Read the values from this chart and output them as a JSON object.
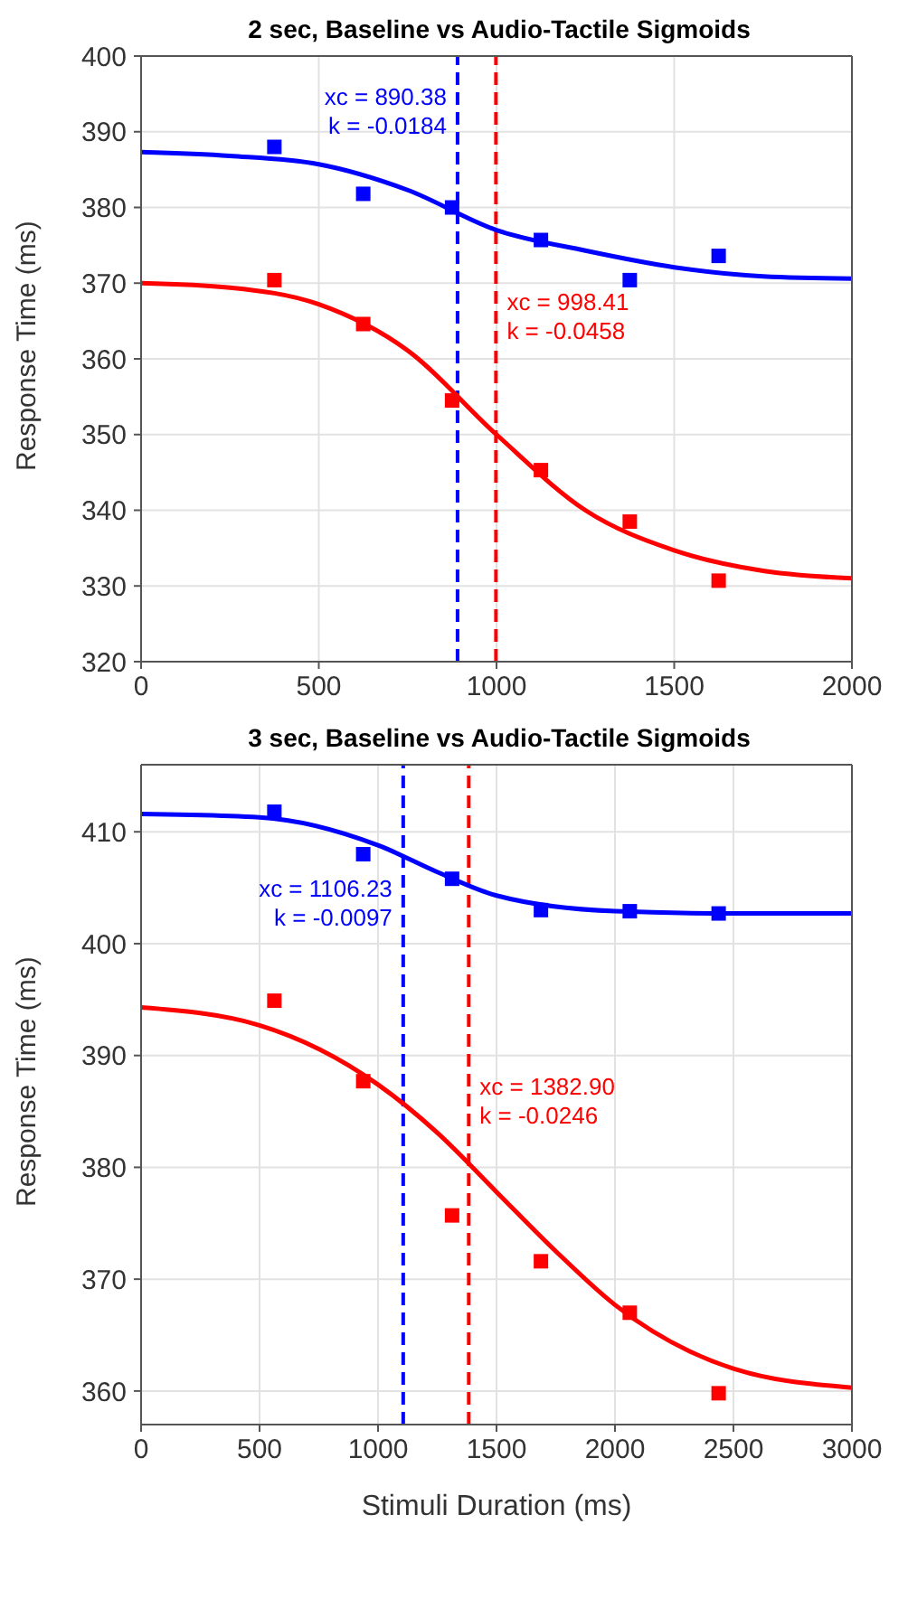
{
  "chart_data": [
    {
      "type": "scatter",
      "title": "2 sec, Baseline vs Audio-Tactile Sigmoids",
      "ylabel": "Response Time (ms)",
      "xlim": [
        0,
        2000
      ],
      "xticks": [
        0,
        500,
        1000,
        1500,
        2000
      ],
      "ylim": [
        320,
        400
      ],
      "yticks": [
        320,
        330,
        340,
        350,
        360,
        370,
        380,
        390,
        400
      ],
      "grid": true,
      "series": [
        {
          "marker": "square",
          "color": "#0000ff",
          "x": [
            375,
            625,
            875,
            1125,
            1375,
            1625
          ],
          "values": [
            388,
            381.8,
            380,
            375.7,
            370.4,
            373.6
          ]
        },
        {
          "marker": "square",
          "color": "#ff0000",
          "x": [
            375,
            625,
            875,
            1125,
            1375,
            1625
          ],
          "values": [
            370.4,
            364.6,
            354.5,
            345.3,
            338.5,
            330.7
          ]
        },
        {
          "type": "line",
          "marker": "none",
          "line_style": "solid",
          "color": "#0000ff",
          "x": [
            0,
            250,
            500,
            750,
            1000,
            1250,
            1500,
            1750,
            2000
          ],
          "values": [
            387.3,
            386.8,
            385.7,
            382.3,
            377,
            374.3,
            372.1,
            370.9,
            370.6
          ]
        },
        {
          "type": "line",
          "marker": "none",
          "line_style": "solid",
          "color": "#ff0000",
          "x": [
            0,
            250,
            500,
            750,
            1000,
            1250,
            1500,
            1750,
            2000
          ],
          "values": [
            370,
            369.4,
            367.2,
            361.1,
            350,
            340,
            334.7,
            332,
            331
          ]
        }
      ],
      "ref_lines": [
        {
          "axis": "x",
          "value": 890.38,
          "color": "#0000ff",
          "line_style": "dashed"
        },
        {
          "axis": "x",
          "value": 998.41,
          "color": "#ff0000",
          "line_style": "dashed"
        }
      ],
      "annotations": [
        "xc = 890.38\nk = -0.0184",
        "xc = 998.41\nk = -0.0458"
      ]
    },
    {
      "type": "scatter",
      "title": "3 sec, Baseline vs Audio-Tactile Sigmoids",
      "xlabel": "Stimuli Duration (ms)",
      "ylabel": "Response Time (ms)",
      "xlim": [
        0,
        3000
      ],
      "xticks": [
        0,
        500,
        1000,
        1500,
        2000,
        2500,
        3000
      ],
      "ylim": [
        357,
        416
      ],
      "yticks": [
        360,
        370,
        380,
        390,
        400,
        410
      ],
      "grid": true,
      "series": [
        {
          "marker": "square",
          "color": "#0000ff",
          "x": [
            562.5,
            937.5,
            1312.5,
            1687.5,
            2062.5,
            2437.5
          ],
          "values": [
            411.8,
            408,
            405.8,
            403,
            402.9,
            402.7
          ]
        },
        {
          "marker": "square",
          "color": "#ff0000",
          "x": [
            562.5,
            937.5,
            1312.5,
            1687.5,
            2062.5,
            2437.5
          ],
          "values": [
            394.9,
            387.7,
            375.7,
            371.6,
            367,
            359.8
          ]
        },
        {
          "type": "line",
          "marker": "none",
          "line_style": "solid",
          "color": "#0000ff",
          "x": [
            0,
            500,
            1000,
            1250,
            1500,
            2000,
            2500,
            3000
          ],
          "values": [
            411.6,
            411.3,
            408.8,
            406.4,
            404.3,
            402.9,
            402.7,
            402.7
          ]
        },
        {
          "type": "line",
          "marker": "none",
          "line_style": "solid",
          "color": "#ff0000",
          "x": [
            0,
            500,
            1000,
            1250,
            1500,
            1750,
            2000,
            2500,
            3000
          ],
          "values": [
            394.3,
            392.7,
            387.4,
            383.1,
            377.8,
            372.5,
            367.7,
            362,
            360.3
          ]
        }
      ],
      "ref_lines": [
        {
          "axis": "x",
          "value": 1106.23,
          "color": "#0000ff",
          "line_style": "dashed"
        },
        {
          "axis": "x",
          "value": 1382.9,
          "color": "#ff0000",
          "line_style": "dashed"
        }
      ],
      "annotations": [
        "xc = 1106.23\nk = -0.0097",
        "xc = 1382.90\nk = -0.0246"
      ]
    }
  ]
}
